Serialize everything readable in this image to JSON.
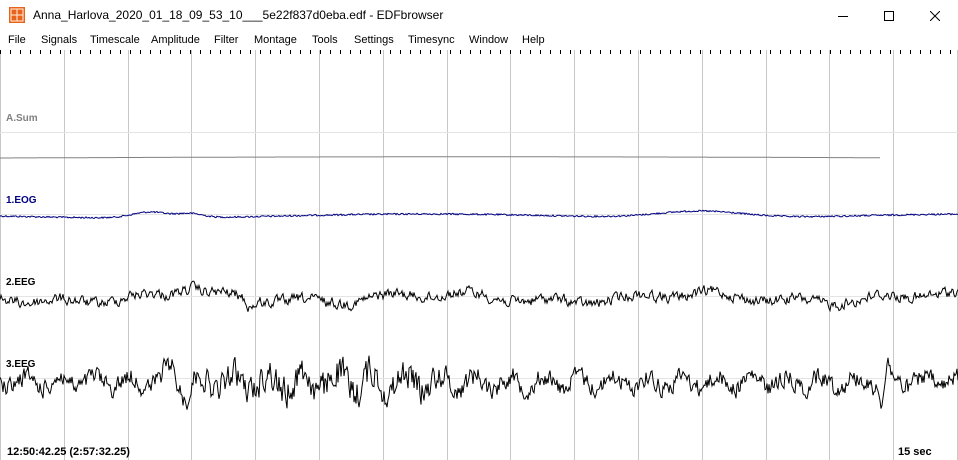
{
  "window": {
    "title": "Anna_Harlova_2020_01_18_09_53_10___5e22f837d0eba.edf - EDFbrowser",
    "app_icon": "edfbrowser-app-icon",
    "minimize_icon": "minimize-icon",
    "maximize_icon": "maximize-icon",
    "close_icon": "close-icon"
  },
  "menu": {
    "items": [
      {
        "label": "File"
      },
      {
        "label": "Signals"
      },
      {
        "label": "Timescale"
      },
      {
        "label": "Amplitude"
      },
      {
        "label": "Filter"
      },
      {
        "label": "Montage"
      },
      {
        "label": "Tools"
      },
      {
        "label": "Settings"
      },
      {
        "label": "Timesync"
      },
      {
        "label": "Window"
      },
      {
        "label": "Help"
      }
    ]
  },
  "signals": [
    {
      "label": "A.Sum",
      "color": "#808080"
    },
    {
      "label": "1.EOG",
      "color": "#000080"
    },
    {
      "label": "2.EEG",
      "color": "#000000"
    },
    {
      "label": "3.EEG",
      "color": "#000000"
    }
  ],
  "status": {
    "time": "12:50:42.25 (2:57:32.25)",
    "timescale": "15 sec"
  },
  "colors": {
    "grid": "#c8c8c8",
    "background": "#ffffff",
    "title_icon_bg": "#e06010"
  }
}
